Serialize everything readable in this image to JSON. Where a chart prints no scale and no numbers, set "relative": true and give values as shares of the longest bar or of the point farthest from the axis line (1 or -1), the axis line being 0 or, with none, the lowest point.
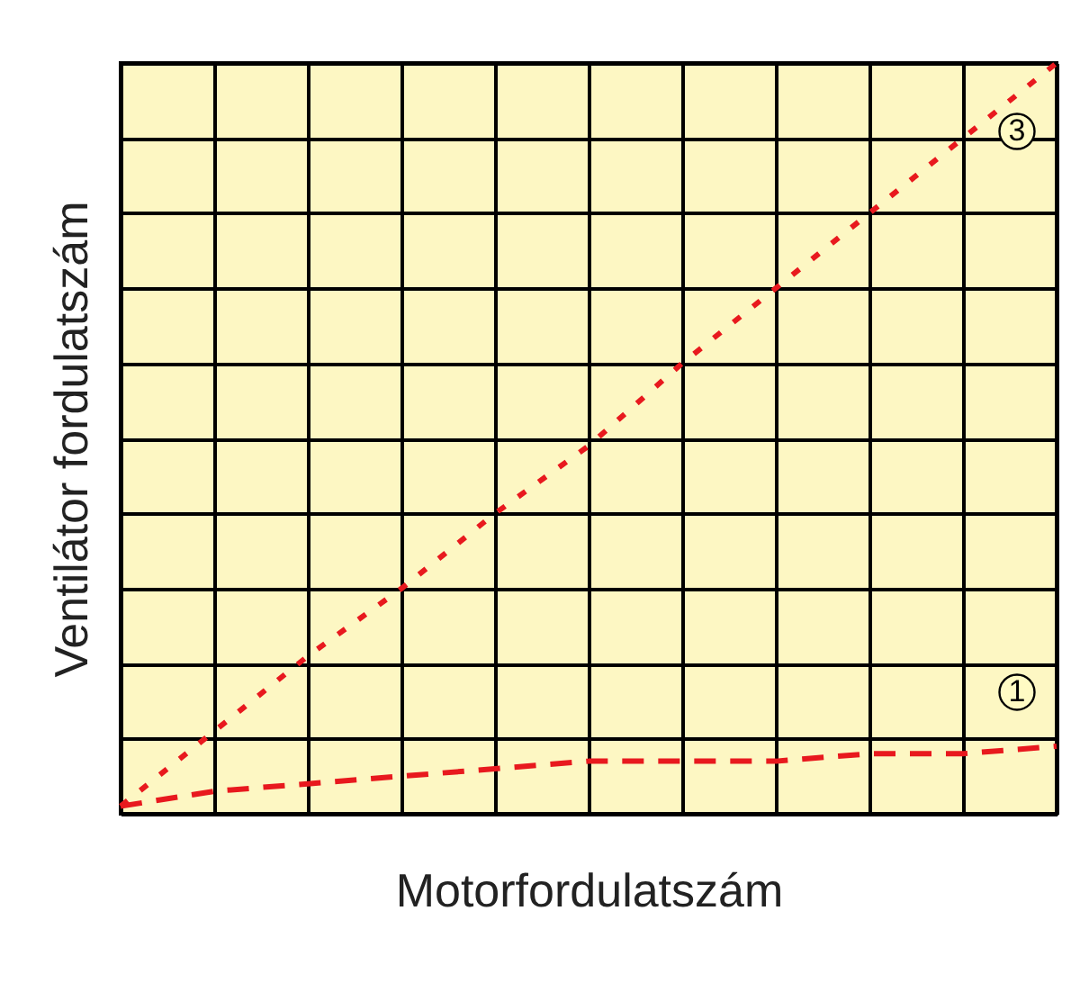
{
  "chart_data": {
    "type": "line",
    "xlabel": "Motorfordulatszám",
    "ylabel": "Ventilátor fordulatszám",
    "relative": true,
    "grid": true,
    "categories": [
      null,
      null,
      null,
      null,
      null,
      null,
      null,
      null,
      null,
      null,
      null
    ],
    "series": [
      {
        "name": "3",
        "color": "#e8191e",
        "line_style": "dotted",
        "values": [
          0.01,
          0.11,
          0.21,
          0.3,
          0.4,
          0.49,
          0.6,
          0.7,
          0.8,
          0.9,
          1
        ]
      },
      {
        "name": "1",
        "color": "#e8191e",
        "line_style": "dashed",
        "values": [
          0.01,
          0.03,
          0.04,
          0.05,
          0.06,
          0.07,
          0.07,
          0.07,
          0.08,
          0.08,
          0.09
        ]
      }
    ]
  }
}
